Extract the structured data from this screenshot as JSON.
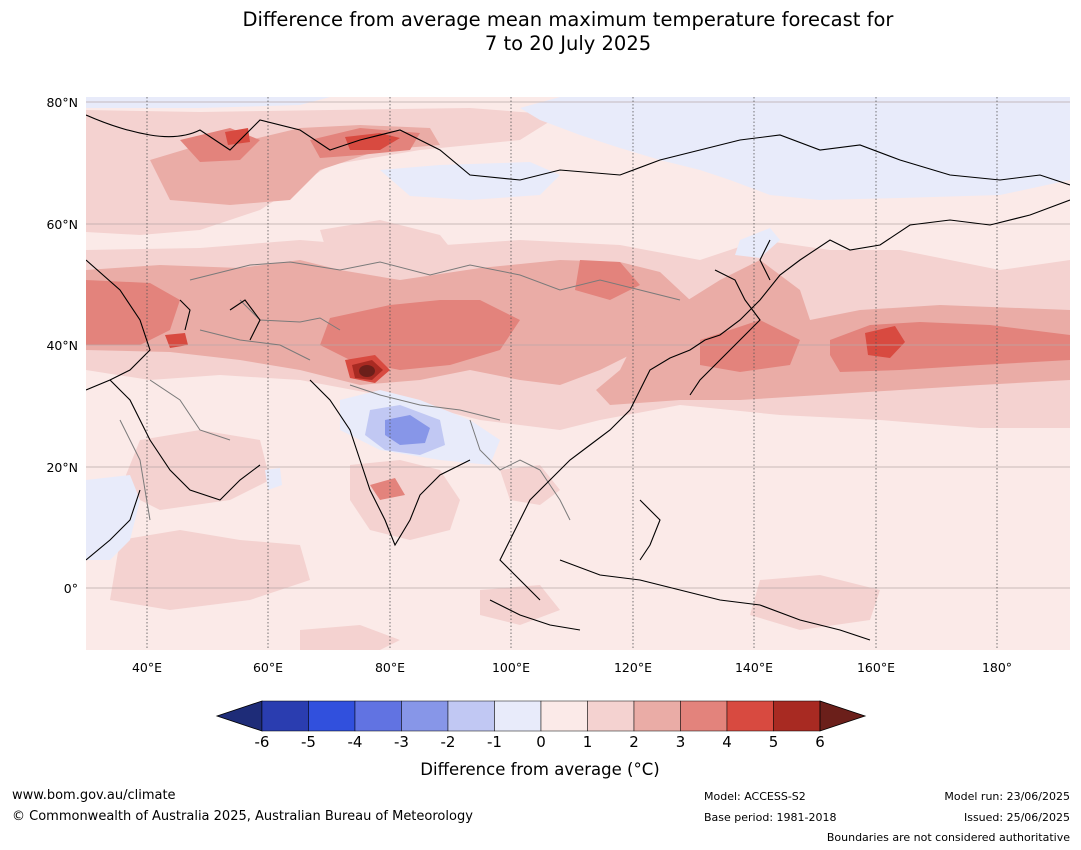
{
  "title_line1": "Difference from average mean maximum temperature forecast for",
  "title_line2": "7 to 20 July 2025",
  "map": {
    "lat_labels": [
      "80°N",
      "60°N",
      "40°N",
      "20°N",
      "0°"
    ],
    "lon_labels": [
      "40°E",
      "60°E",
      "80°E",
      "100°E",
      "120°E",
      "140°E",
      "160°E",
      "180°"
    ],
    "colors": {
      "p0_1": "#fbeae8",
      "p1_2": "#f4d2d0",
      "p2_3": "#eaaca6",
      "p3_4": "#e3837c",
      "p4_5": "#d84a40",
      "p5_6": "#a82a22",
      "p6": "#6b1f1a",
      "n0_1": "#e8ebfa",
      "n1_2": "#c1c8f3",
      "n2_3": "#8796e8",
      "land_outline": "#000000",
      "border": "#7a7a7a"
    }
  },
  "colorbar": {
    "ticks": [
      "-6",
      "-5",
      "-4",
      "-3",
      "-2",
      "-1",
      "0",
      "1",
      "2",
      "3",
      "4",
      "5",
      "6"
    ],
    "colors": [
      "#1e2c78",
      "#2a3db0",
      "#3150dd",
      "#6173e2",
      "#8796e8",
      "#c1c8f3",
      "#e8ebfa",
      "#fbeae8",
      "#f4d2d0",
      "#eaaca6",
      "#e3837c",
      "#d84a40",
      "#a82a22",
      "#6b1f1a"
    ],
    "label": "Difference from average (°C)"
  },
  "footer": {
    "url": "www.bom.gov.au/climate",
    "copyright": "© Commonwealth of Australia 2025, Australian Bureau of Meteorology",
    "model": "Model: ACCESS-S2",
    "base_period": "Base period: 1981-2018",
    "model_run": "Model run: 23/06/2025",
    "issued": "Issued: 25/06/2025",
    "boundaries_note": "Boundaries are not considered authoritative"
  }
}
